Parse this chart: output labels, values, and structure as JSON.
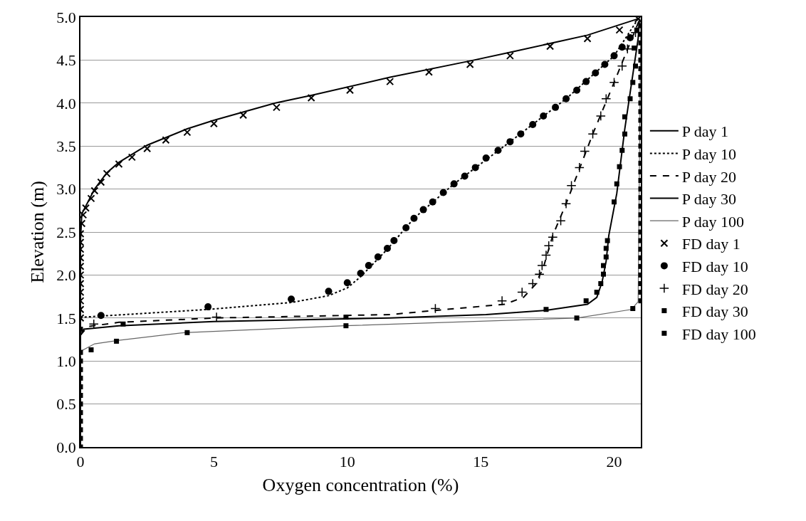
{
  "chart_data": {
    "type": "line",
    "xlabel": "Oxygen concentration (%)",
    "ylabel": "Elevation (m)",
    "xlim": [
      0,
      21
    ],
    "xticks": [
      0,
      5,
      10,
      15,
      20
    ],
    "ylim": [
      0,
      5
    ],
    "yticks": [
      {
        "value": 0,
        "label": "0.0"
      },
      {
        "value": 0.5,
        "label": "0.5"
      },
      {
        "value": 1,
        "label": "1.0"
      },
      {
        "value": 1.5,
        "label": "1.5"
      },
      {
        "value": 2,
        "label": "2.0"
      },
      {
        "value": 2.5,
        "label": "2.5"
      },
      {
        "value": 3,
        "label": "3.0"
      },
      {
        "value": 3.5,
        "label": "3.5"
      },
      {
        "value": 4,
        "label": "4.0"
      },
      {
        "value": 4.5,
        "label": "4.5"
      },
      {
        "value": 5,
        "label": "5.0"
      }
    ],
    "grid": "y",
    "legend": "right",
    "series": [
      {
        "name": "P day 1",
        "line_style": "solid",
        "color": "#000000",
        "x": [
          0,
          0,
          0.05,
          0.53,
          0.99,
          1.44,
          2.5,
          4.0,
          5.0,
          7.3,
          8.65,
          11.6,
          14.6,
          16.1,
          19.0,
          20.9
        ],
        "values": [
          0,
          2.4,
          2.71,
          3.0,
          3.19,
          3.31,
          3.51,
          3.7,
          3.8,
          4.0,
          4.09,
          4.3,
          4.49,
          4.59,
          4.79,
          4.98
        ]
      },
      {
        "name": "P day 10",
        "line_style": "dotted",
        "color": "#000000",
        "x": [
          0,
          0.1,
          4.8,
          7.9,
          9.3,
          10.0,
          10.5,
          11.5,
          12.5,
          14.0,
          16.1,
          18.2,
          20.0,
          20.9
        ],
        "values": [
          1.5,
          1.51,
          1.6,
          1.68,
          1.76,
          1.85,
          1.98,
          2.3,
          2.66,
          3.06,
          3.55,
          4.05,
          4.55,
          4.98
        ]
      },
      {
        "name": "P day 20",
        "line_style": "dashed",
        "color": "#000000",
        "x": [
          0,
          0.27,
          1.44,
          5.0,
          11.6,
          13.35,
          15.9,
          16.6,
          17.05,
          17.35,
          17.7,
          18.2,
          19.2,
          20.0,
          20.95
        ],
        "values": [
          1.3,
          1.4,
          1.45,
          1.5,
          1.54,
          1.59,
          1.66,
          1.74,
          1.89,
          2.09,
          2.46,
          2.83,
          3.64,
          4.24,
          4.97
        ]
      },
      {
        "name": "P day 30",
        "line_style": "solid",
        "color": "#000000",
        "x": [
          0,
          0.13,
          1.44,
          5.0,
          11.6,
          15.2,
          17.45,
          19.0,
          19.35,
          19.55,
          19.7,
          19.8,
          20.1,
          20.4,
          20.9,
          20.95
        ],
        "values": [
          1.3,
          1.37,
          1.41,
          1.46,
          1.5,
          1.54,
          1.59,
          1.66,
          1.74,
          1.92,
          2.16,
          2.46,
          2.95,
          3.7,
          4.75,
          4.98
        ]
      },
      {
        "name": "P day 100",
        "line_style": "solid",
        "color": "#666666",
        "x": [
          0,
          0.05,
          0.53,
          1.44,
          3.9,
          9.9,
          18.6,
          20.65,
          20.9,
          21.0
        ],
        "values": [
          1.05,
          1.12,
          1.2,
          1.24,
          1.33,
          1.41,
          1.5,
          1.6,
          1.69,
          4.98
        ]
      },
      {
        "name": "FD day 1",
        "type": "scatter",
        "marker": "x",
        "color": "#000000",
        "x": [
          0,
          0,
          0,
          0,
          0,
          0,
          0,
          0,
          0,
          0,
          0,
          0.05,
          0.1,
          0.2,
          0.4,
          0.53,
          0.77,
          0.99,
          1.44,
          1.93,
          2.5,
          3.2,
          4.0,
          5.0,
          6.1,
          7.35,
          8.65,
          10.1,
          11.6,
          13.06,
          14.6,
          16.1,
          17.6,
          19.0,
          20.2,
          20.9
        ],
        "values": [
          1.5,
          1.6,
          1.7,
          1.8,
          1.9,
          2.0,
          2.1,
          2.2,
          2.3,
          2.38,
          2.48,
          2.6,
          2.7,
          2.78,
          2.89,
          2.98,
          3.08,
          3.18,
          3.29,
          3.37,
          3.47,
          3.57,
          3.66,
          3.76,
          3.86,
          3.95,
          4.06,
          4.15,
          4.25,
          4.36,
          4.45,
          4.55,
          4.66,
          4.75,
          4.85,
          4.98
        ]
      },
      {
        "name": "FD day 10",
        "type": "scatter",
        "marker": "circle",
        "color": "#000000",
        "x": [
          0.77,
          4.78,
          7.9,
          9.3,
          10.0,
          10.5,
          10.8,
          11.15,
          11.5,
          11.75,
          12.2,
          12.5,
          12.85,
          13.2,
          13.6,
          14.0,
          14.4,
          14.8,
          15.2,
          15.65,
          16.1,
          16.5,
          16.95,
          17.35,
          17.8,
          18.2,
          18.6,
          18.95,
          19.3,
          19.65,
          20.0,
          20.3,
          20.6
        ],
        "values": [
          1.53,
          1.63,
          1.72,
          1.81,
          1.91,
          2.02,
          2.11,
          2.21,
          2.31,
          2.4,
          2.55,
          2.66,
          2.76,
          2.85,
          2.96,
          3.06,
          3.15,
          3.25,
          3.36,
          3.45,
          3.55,
          3.64,
          3.75,
          3.85,
          3.95,
          4.05,
          4.15,
          4.25,
          4.35,
          4.45,
          4.55,
          4.65,
          4.76
        ]
      },
      {
        "name": "FD day 20",
        "type": "scatter",
        "marker": "plus",
        "color": "#000000",
        "x": [
          0.5,
          5.1,
          13.3,
          15.8,
          16.55,
          16.95,
          17.2,
          17.3,
          17.45,
          17.55,
          17.7,
          18.0,
          18.2,
          18.4,
          18.7,
          18.9,
          19.2,
          19.5,
          19.7,
          20.0,
          20.3,
          20.5,
          20.8
        ],
        "values": [
          1.43,
          1.51,
          1.61,
          1.7,
          1.8,
          1.9,
          2.01,
          2.11,
          2.23,
          2.34,
          2.44,
          2.63,
          2.83,
          3.04,
          3.25,
          3.44,
          3.64,
          3.85,
          4.05,
          4.24,
          4.43,
          4.63,
          4.82
        ]
      },
      {
        "name": "FD day 30",
        "type": "scatter",
        "marker": "square",
        "color": "#000000",
        "x": [
          0,
          1.6,
          9.95,
          17.45,
          18.95,
          19.35,
          19.5,
          19.6,
          19.6,
          19.7,
          19.7,
          19.75,
          20.0,
          20.1,
          20.2,
          20.3,
          20.4,
          20.4,
          20.6,
          20.7,
          20.8,
          20.75,
          20.85
        ],
        "values": [
          1.37,
          1.43,
          1.51,
          1.6,
          1.7,
          1.8,
          1.9,
          2.01,
          2.11,
          2.21,
          2.31,
          2.4,
          2.85,
          3.06,
          3.26,
          3.45,
          3.64,
          3.84,
          4.05,
          4.24,
          4.43,
          4.64,
          4.85
        ]
      },
      {
        "name": "FD day 100",
        "type": "scatter",
        "marker": "square",
        "color": "#000000",
        "x": [
          0,
          0,
          0,
          0,
          0,
          0,
          0,
          0,
          0,
          0,
          0,
          0,
          0.4,
          1.35,
          4.0,
          9.95,
          18.6,
          20.7,
          21,
          21,
          21,
          21,
          21,
          21,
          21,
          21,
          21,
          21,
          21,
          21,
          21,
          21,
          21,
          21,
          21,
          21,
          21,
          21,
          21,
          21,
          21,
          21,
          21,
          21,
          21,
          21,
          21,
          21,
          21,
          21,
          21
        ],
        "values": [
          0,
          0.1,
          0.2,
          0.3,
          0.4,
          0.5,
          0.6,
          0.7,
          0.8,
          0.9,
          1.0,
          1.1,
          1.13,
          1.23,
          1.33,
          1.41,
          1.5,
          1.61,
          1.7,
          1.8,
          1.9,
          2.0,
          2.1,
          2.2,
          2.3,
          2.4,
          2.5,
          2.6,
          2.7,
          2.8,
          2.9,
          3.0,
          3.1,
          3.2,
          3.3,
          3.4,
          3.5,
          3.6,
          3.7,
          3.8,
          3.9,
          4.0,
          4.1,
          4.2,
          4.3,
          4.4,
          4.5,
          4.6,
          4.7,
          4.8,
          4.9
        ]
      }
    ]
  }
}
